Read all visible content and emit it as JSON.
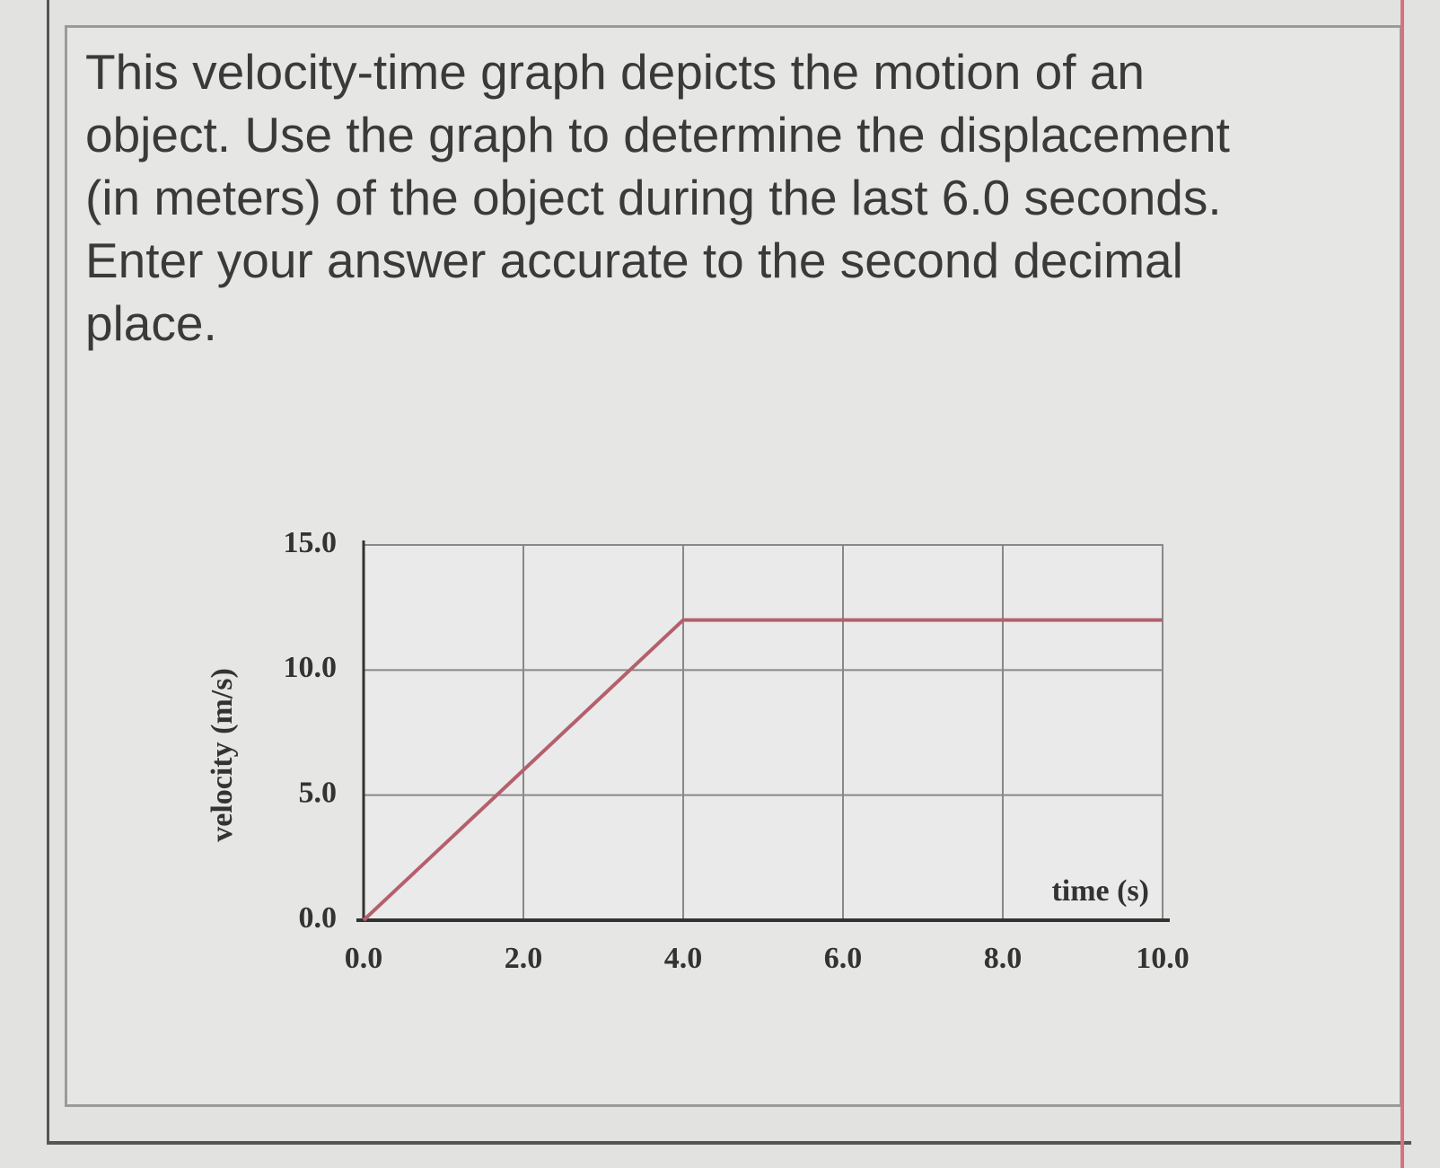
{
  "question_lines": [
    "This velocity-time graph depicts the motion of an",
    "object. Use the graph to determine the displacement",
    "(in meters) of the object during the last 6.0 seconds.",
    "Enter your answer accurate to the second decimal",
    "place."
  ],
  "chart_data": {
    "type": "line",
    "xlabel": "time (s)",
    "ylabel": "velocity (m/s)",
    "x": [
      0,
      4,
      10
    ],
    "values": [
      0,
      12,
      12
    ],
    "color": "#b4606c",
    "xlim": [
      0,
      10
    ],
    "ylim": [
      0,
      15
    ],
    "xticks": [
      {
        "value": 0,
        "label": "0.0"
      },
      {
        "value": 2,
        "label": "2.0"
      },
      {
        "value": 4,
        "label": "4.0"
      },
      {
        "value": 6,
        "label": "6.0"
      },
      {
        "value": 8,
        "label": "8.0"
      },
      {
        "value": 10,
        "label": "10.0"
      }
    ],
    "yticks": [
      {
        "value": 0,
        "label": "0.0"
      },
      {
        "value": 5,
        "label": "5.0"
      },
      {
        "value": 10,
        "label": "10.0"
      },
      {
        "value": 15,
        "label": "15.0"
      }
    ],
    "grid": true
  }
}
